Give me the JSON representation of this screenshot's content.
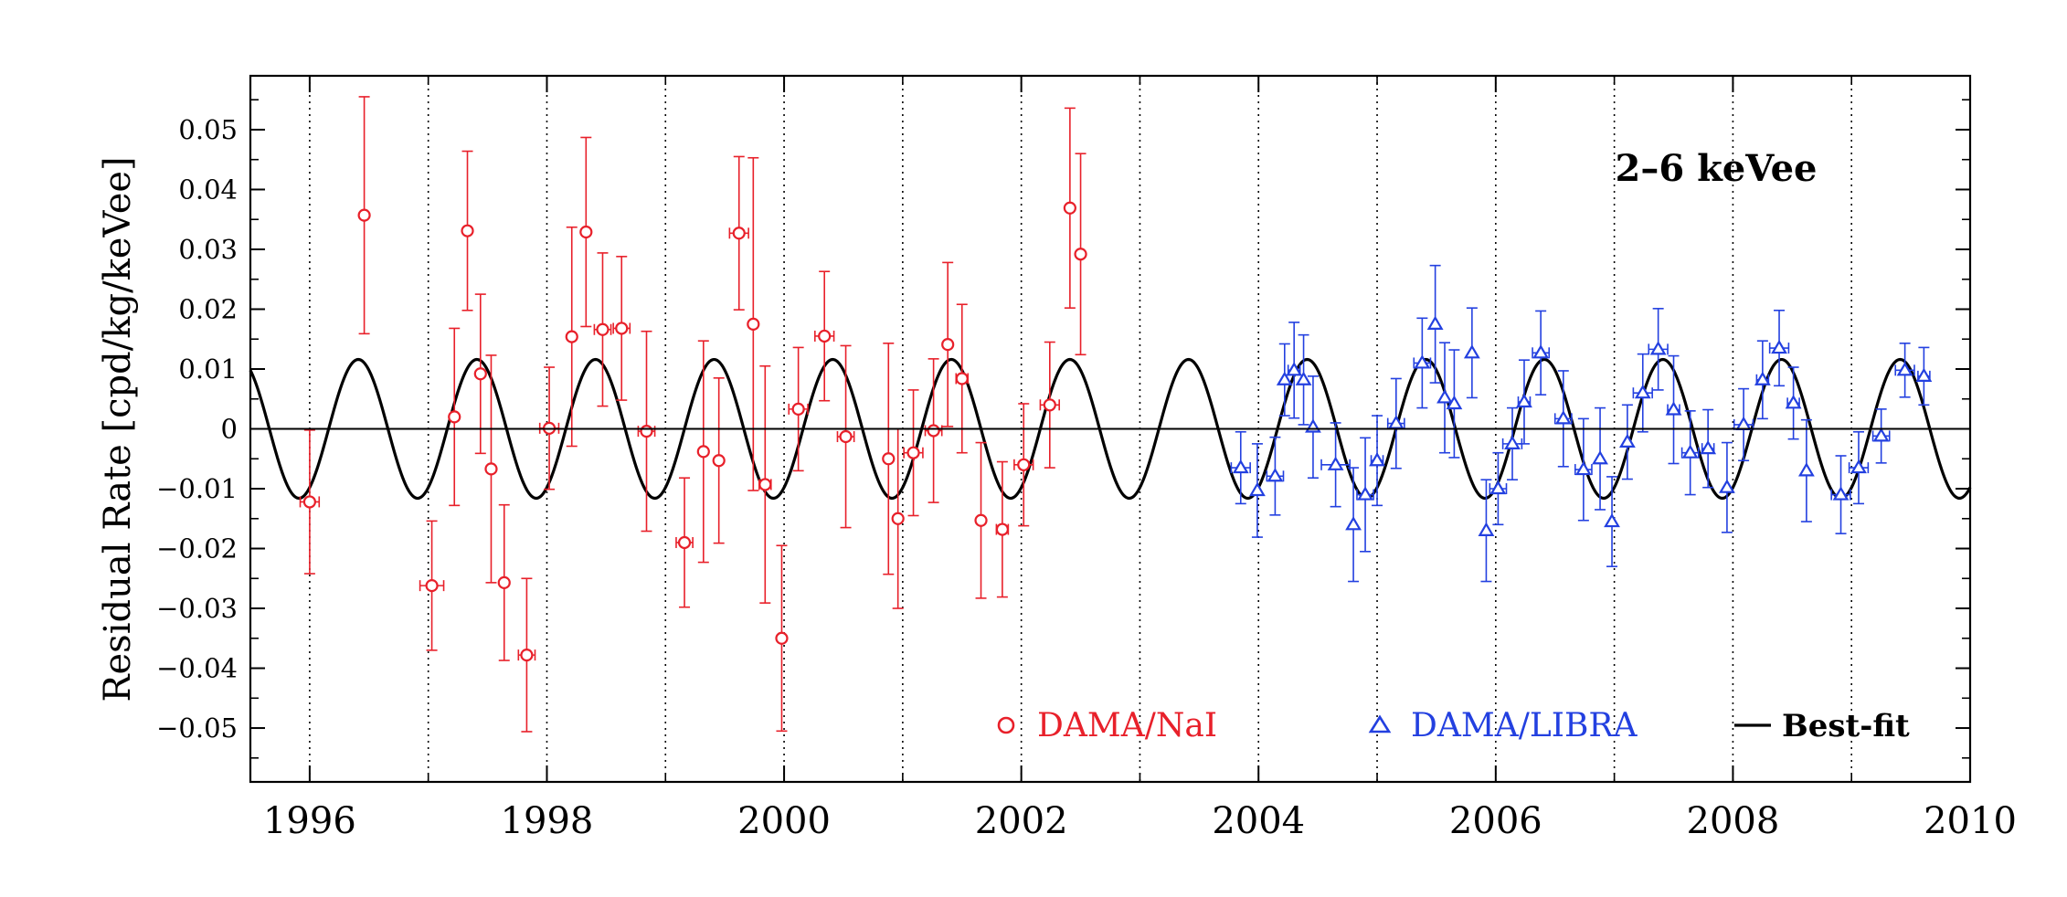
{
  "chart_data": {
    "type": "scatter",
    "annotation": "2–6 keVee",
    "ylabel": "Residual Rate [cpd/kg/keVee]",
    "xlabel": "",
    "xlim": [
      1995.5,
      2010
    ],
    "ylim": [
      -0.059,
      0.059
    ],
    "x_ticks": [
      1996,
      1998,
      2000,
      2002,
      2004,
      2006,
      2008,
      2010
    ],
    "x_tick_labels": [
      "1996",
      "1998",
      "2000",
      "2002",
      "2004",
      "2006",
      "2008",
      "2010"
    ],
    "y_ticks": [
      -0.05,
      -0.04,
      -0.03,
      -0.02,
      -0.01,
      0,
      0.01,
      0.02,
      0.03,
      0.04,
      0.05
    ],
    "y_tick_labels": [
      "−0.05",
      "−0.04",
      "−0.03",
      "−0.02",
      "−0.01",
      "0",
      "0.01",
      "0.02",
      "0.03",
      "0.04",
      "0.05"
    ],
    "grid_vertical_dotted_years": [
      1996,
      1997,
      1998,
      1999,
      2000,
      2001,
      2002,
      2003,
      2004,
      2005,
      2006,
      2007,
      2008,
      2009
    ],
    "legend_placement": "bottom-right",
    "colors": {
      "nai": "#e8202a",
      "libra": "#2340e0",
      "fit": "#000000"
    },
    "series": [
      {
        "name": "DAMA/NaI",
        "marker": "circle",
        "color": "#e8202a",
        "points": [
          {
            "x": 1996.0,
            "y": -0.0122,
            "xerr": 0.08,
            "yerr": 0.012
          },
          {
            "x": 1996.46,
            "y": 0.0357,
            "xerr": 0.0,
            "yerr": 0.0198
          },
          {
            "x": 1997.03,
            "y": -0.0262,
            "xerr": 0.1,
            "yerr": 0.0108
          },
          {
            "x": 1997.22,
            "y": 0.002,
            "xerr": 0.0,
            "yerr": 0.0148
          },
          {
            "x": 1997.33,
            "y": 0.0331,
            "xerr": 0.0,
            "yerr": 0.0133
          },
          {
            "x": 1997.44,
            "y": 0.0092,
            "xerr": 0.0,
            "yerr": 0.0133
          },
          {
            "x": 1997.53,
            "y": -0.0067,
            "xerr": 0.0,
            "yerr": 0.019
          },
          {
            "x": 1997.64,
            "y": -0.0257,
            "xerr": 0.0,
            "yerr": 0.013
          },
          {
            "x": 1997.83,
            "y": -0.0378,
            "xerr": 0.07,
            "yerr": 0.0128
          },
          {
            "x": 1998.02,
            "y": 0.0001,
            "xerr": 0.08,
            "yerr": 0.0102
          },
          {
            "x": 1998.21,
            "y": 0.0154,
            "xerr": 0.0,
            "yerr": 0.0183
          },
          {
            "x": 1998.33,
            "y": 0.0329,
            "xerr": 0.0,
            "yerr": 0.0158
          },
          {
            "x": 1998.47,
            "y": 0.0166,
            "xerr": 0.07,
            "yerr": 0.0128
          },
          {
            "x": 1998.63,
            "y": 0.0168,
            "xerr": 0.07,
            "yerr": 0.012
          },
          {
            "x": 1998.84,
            "y": -0.0004,
            "xerr": 0.07,
            "yerr": 0.0167
          },
          {
            "x": 1999.16,
            "y": -0.019,
            "xerr": 0.07,
            "yerr": 0.0108
          },
          {
            "x": 1999.32,
            "y": -0.0038,
            "xerr": 0.0,
            "yerr": 0.0185
          },
          {
            "x": 1999.45,
            "y": -0.0053,
            "xerr": 0.0,
            "yerr": 0.0138
          },
          {
            "x": 1999.62,
            "y": 0.0327,
            "xerr": 0.08,
            "yerr": 0.0128
          },
          {
            "x": 1999.74,
            "y": 0.0175,
            "xerr": 0.0,
            "yerr": 0.0278
          },
          {
            "x": 1999.84,
            "y": -0.0093,
            "xerr": 0.05,
            "yerr": 0.0198
          },
          {
            "x": 1999.98,
            "y": -0.035,
            "xerr": 0.0,
            "yerr": 0.0155
          },
          {
            "x": 2000.12,
            "y": 0.0033,
            "xerr": 0.08,
            "yerr": 0.0103
          },
          {
            "x": 2000.34,
            "y": 0.0155,
            "xerr": 0.08,
            "yerr": 0.0108
          },
          {
            "x": 2000.52,
            "y": -0.0013,
            "xerr": 0.07,
            "yerr": 0.0152
          },
          {
            "x": 2000.88,
            "y": -0.005,
            "xerr": 0.0,
            "yerr": 0.0193
          },
          {
            "x": 2000.96,
            "y": -0.015,
            "xerr": 0.0,
            "yerr": 0.015
          },
          {
            "x": 2001.09,
            "y": -0.004,
            "xerr": 0.08,
            "yerr": 0.0105
          },
          {
            "x": 2001.26,
            "y": -0.0003,
            "xerr": 0.07,
            "yerr": 0.012
          },
          {
            "x": 2001.38,
            "y": 0.0141,
            "xerr": 0.0,
            "yerr": 0.0137
          },
          {
            "x": 2001.5,
            "y": 0.0084,
            "xerr": 0.05,
            "yerr": 0.0124
          },
          {
            "x": 2001.66,
            "y": -0.0153,
            "xerr": 0.0,
            "yerr": 0.013
          },
          {
            "x": 2001.84,
            "y": -0.0168,
            "xerr": 0.05,
            "yerr": 0.0113
          },
          {
            "x": 2002.02,
            "y": -0.006,
            "xerr": 0.08,
            "yerr": 0.0102
          },
          {
            "x": 2002.24,
            "y": 0.004,
            "xerr": 0.08,
            "yerr": 0.0105
          },
          {
            "x": 2002.41,
            "y": 0.0369,
            "xerr": 0.0,
            "yerr": 0.0167
          },
          {
            "x": 2002.5,
            "y": 0.0292,
            "xerr": 0.0,
            "yerr": 0.0168
          }
        ]
      },
      {
        "name": "DAMA/LIBRA",
        "marker": "triangle",
        "color": "#2340e0",
        "points": [
          {
            "x": 2003.85,
            "y": -0.0065,
            "xerr": 0.08,
            "yerr": 0.006
          },
          {
            "x": 2003.99,
            "y": -0.0103,
            "xerr": 0.0,
            "yerr": 0.0078
          },
          {
            "x": 2004.14,
            "y": -0.0079,
            "xerr": 0.07,
            "yerr": 0.0065
          },
          {
            "x": 2004.22,
            "y": 0.0082,
            "xerr": 0.0,
            "yerr": 0.006
          },
          {
            "x": 2004.3,
            "y": 0.0098,
            "xerr": 0.05,
            "yerr": 0.008
          },
          {
            "x": 2004.38,
            "y": 0.0082,
            "xerr": 0.0,
            "yerr": 0.0075
          },
          {
            "x": 2004.46,
            "y": 0.0003,
            "xerr": 0.0,
            "yerr": 0.0085
          },
          {
            "x": 2004.65,
            "y": -0.006,
            "xerr": 0.12,
            "yerr": 0.007
          },
          {
            "x": 2004.8,
            "y": -0.016,
            "xerr": 0.0,
            "yerr": 0.0095
          },
          {
            "x": 2004.9,
            "y": -0.011,
            "xerr": 0.07,
            "yerr": 0.0095
          },
          {
            "x": 2005.0,
            "y": -0.0053,
            "xerr": 0.05,
            "yerr": 0.0075
          },
          {
            "x": 2005.16,
            "y": 0.0009,
            "xerr": 0.07,
            "yerr": 0.0075
          },
          {
            "x": 2005.38,
            "y": 0.011,
            "xerr": 0.07,
            "yerr": 0.0075
          },
          {
            "x": 2005.49,
            "y": 0.0175,
            "xerr": 0.0,
            "yerr": 0.0098
          },
          {
            "x": 2005.57,
            "y": 0.0052,
            "xerr": 0.0,
            "yerr": 0.0092
          },
          {
            "x": 2005.65,
            "y": 0.0042,
            "xerr": 0.0,
            "yerr": 0.009
          },
          {
            "x": 2005.8,
            "y": 0.0127,
            "xerr": 0.0,
            "yerr": 0.0075
          },
          {
            "x": 2005.92,
            "y": -0.017,
            "xerr": 0.0,
            "yerr": 0.0085
          },
          {
            "x": 2006.02,
            "y": -0.01,
            "xerr": 0.07,
            "yerr": 0.006
          },
          {
            "x": 2006.14,
            "y": -0.0025,
            "xerr": 0.08,
            "yerr": 0.006
          },
          {
            "x": 2006.24,
            "y": 0.0045,
            "xerr": 0.05,
            "yerr": 0.007
          },
          {
            "x": 2006.38,
            "y": 0.0127,
            "xerr": 0.07,
            "yerr": 0.007
          },
          {
            "x": 2006.57,
            "y": 0.0017,
            "xerr": 0.07,
            "yerr": 0.008
          },
          {
            "x": 2006.74,
            "y": -0.0068,
            "xerr": 0.07,
            "yerr": 0.0085
          },
          {
            "x": 2006.88,
            "y": -0.005,
            "xerr": 0.0,
            "yerr": 0.0085
          },
          {
            "x": 2006.98,
            "y": -0.0155,
            "xerr": 0.0,
            "yerr": 0.0075
          },
          {
            "x": 2007.11,
            "y": -0.0022,
            "xerr": 0.0,
            "yerr": 0.0062
          },
          {
            "x": 2007.24,
            "y": 0.006,
            "xerr": 0.08,
            "yerr": 0.0065
          },
          {
            "x": 2007.37,
            "y": 0.0133,
            "xerr": 0.08,
            "yerr": 0.0068
          },
          {
            "x": 2007.5,
            "y": 0.0032,
            "xerr": 0.05,
            "yerr": 0.009
          },
          {
            "x": 2007.64,
            "y": -0.004,
            "xerr": 0.07,
            "yerr": 0.007
          },
          {
            "x": 2007.79,
            "y": -0.0033,
            "xerr": 0.05,
            "yerr": 0.0065
          },
          {
            "x": 2007.95,
            "y": -0.0098,
            "xerr": 0.0,
            "yerr": 0.0075
          },
          {
            "x": 2008.09,
            "y": 0.0007,
            "xerr": 0.08,
            "yerr": 0.006
          },
          {
            "x": 2008.25,
            "y": 0.0082,
            "xerr": 0.05,
            "yerr": 0.0065
          },
          {
            "x": 2008.39,
            "y": 0.0135,
            "xerr": 0.08,
            "yerr": 0.0063
          },
          {
            "x": 2008.51,
            "y": 0.0043,
            "xerr": 0.05,
            "yerr": 0.006
          },
          {
            "x": 2008.62,
            "y": -0.007,
            "xerr": 0.0,
            "yerr": 0.0085
          },
          {
            "x": 2008.91,
            "y": -0.011,
            "xerr": 0.08,
            "yerr": 0.0065
          },
          {
            "x": 2009.06,
            "y": -0.0065,
            "xerr": 0.08,
            "yerr": 0.006
          },
          {
            "x": 2009.25,
            "y": -0.0012,
            "xerr": 0.07,
            "yerr": 0.0045
          },
          {
            "x": 2009.45,
            "y": 0.0098,
            "xerr": 0.08,
            "yerr": 0.0045
          },
          {
            "x": 2009.61,
            "y": 0.0088,
            "xerr": 0.05,
            "yerr": 0.0048
          }
        ]
      },
      {
        "name": "Best-fit",
        "kind": "line",
        "color": "#000000",
        "model": "A*cos(2*pi*(t - t0)/T)",
        "amplitude": 0.0116,
        "period_years": 1.0,
        "phase_peak_year_fraction": 0.41
      }
    ]
  }
}
